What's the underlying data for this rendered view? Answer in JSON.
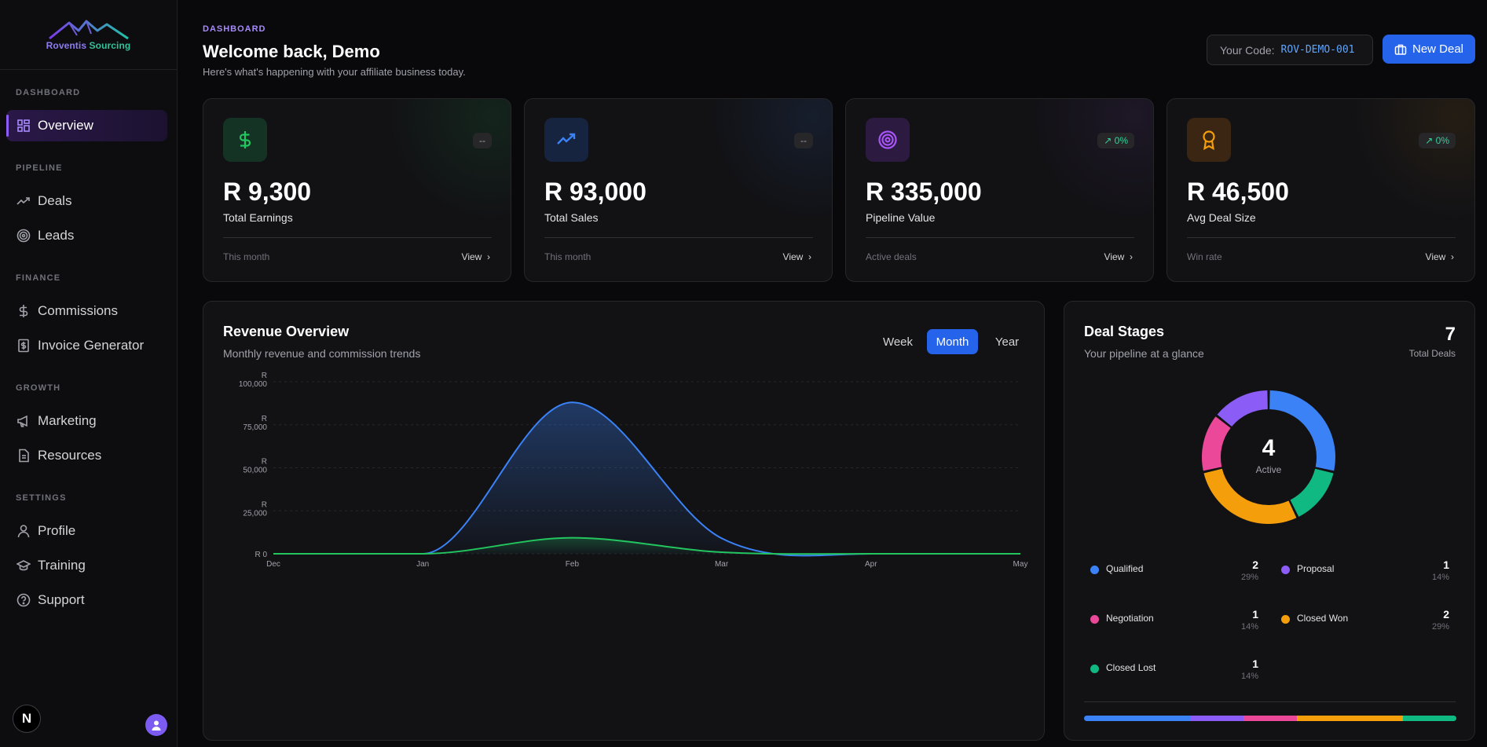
{
  "brand": {
    "name_part1": "Roventis",
    "name_part2": "Sourcing"
  },
  "sidebar": {
    "sections": [
      {
        "title": "DASHBOARD",
        "items": [
          {
            "label": "Overview",
            "icon": "grid-icon",
            "active": true
          }
        ]
      },
      {
        "title": "PIPELINE",
        "items": [
          {
            "label": "Deals",
            "icon": "trend-icon"
          },
          {
            "label": "Leads",
            "icon": "target-icon"
          }
        ]
      },
      {
        "title": "FINANCE",
        "items": [
          {
            "label": "Commissions",
            "icon": "dollar-icon"
          },
          {
            "label": "Invoice Generator",
            "icon": "invoice-icon"
          }
        ]
      },
      {
        "title": "GROWTH",
        "items": [
          {
            "label": "Marketing",
            "icon": "megaphone-icon"
          },
          {
            "label": "Resources",
            "icon": "file-icon"
          }
        ]
      },
      {
        "title": "SETTINGS",
        "items": [
          {
            "label": "Profile",
            "icon": "user-icon"
          },
          {
            "label": "Training",
            "icon": "graduation-cap-icon"
          },
          {
            "label": "Support",
            "icon": "help-circle-icon"
          }
        ]
      }
    ],
    "bottom_badge": "N"
  },
  "header": {
    "kicker": "DASHBOARD",
    "title": "Welcome back, Demo",
    "subtitle": "Here's what's happening with your affiliate business today.",
    "code_label": "Your Code:",
    "code_value": "ROV-DEMO-001",
    "new_deal_label": "New Deal"
  },
  "stats": [
    {
      "value": "R 9,300",
      "label": "Total Earnings",
      "badge": "--",
      "badge_up": false,
      "foot": "This month",
      "link": "View",
      "accent": "#22c55e",
      "icon": "dollar-icon"
    },
    {
      "value": "R 93,000",
      "label": "Total Sales",
      "badge": "--",
      "badge_up": false,
      "foot": "This month",
      "link": "View",
      "accent": "#3b82f6",
      "icon": "trend-up-icon"
    },
    {
      "value": "R 335,000",
      "label": "Pipeline Value",
      "badge": "0%",
      "badge_up": true,
      "foot": "Active deals",
      "link": "View",
      "accent": "#a855f7",
      "icon": "target-icon"
    },
    {
      "value": "R 46,500",
      "label": "Avg Deal Size",
      "badge": "0%",
      "badge_up": true,
      "foot": "Win rate",
      "link": "View",
      "accent": "#f59e0b",
      "icon": "award-icon"
    }
  ],
  "revenue": {
    "title": "Revenue Overview",
    "subtitle": "Monthly revenue and commission trends",
    "ranges": [
      "Week",
      "Month",
      "Year"
    ],
    "active_range": "Month"
  },
  "chart_data": {
    "type": "area",
    "title": "Revenue Overview",
    "categories": [
      "Dec",
      "Jan",
      "Feb",
      "Mar",
      "Apr",
      "May"
    ],
    "y_ticks": [
      "R 0",
      "R 25,000",
      "R 50,000",
      "R 75,000",
      "R 100,000"
    ],
    "ylim": [
      0,
      100000
    ],
    "series": [
      {
        "values": [
          0,
          0,
          88000,
          9000,
          0,
          0
        ],
        "color": "#3b82f6"
      },
      {
        "values": [
          0,
          0,
          9300,
          900,
          0,
          0
        ],
        "color": "#22c55e"
      }
    ]
  },
  "stages": {
    "title": "Deal Stages",
    "subtitle": "Your pipeline at a glance",
    "total": "7",
    "total_label": "Total Deals",
    "center_value": "4",
    "center_label": "Active",
    "items": [
      {
        "name": "Qualified",
        "count": "2",
        "pct": "29%",
        "color": "#3b82f6",
        "value": 2
      },
      {
        "name": "Proposal",
        "count": "1",
        "pct": "14%",
        "color": "#8b5cf6",
        "value": 1
      },
      {
        "name": "Negotiation",
        "count": "1",
        "pct": "14%",
        "color": "#ec4899",
        "value": 1
      },
      {
        "name": "Closed Won",
        "count": "2",
        "pct": "29%",
        "color": "#f59e0b",
        "value": 2
      },
      {
        "name": "Closed Lost",
        "count": "1",
        "pct": "14%",
        "color": "#10b981",
        "value": 1
      }
    ]
  }
}
